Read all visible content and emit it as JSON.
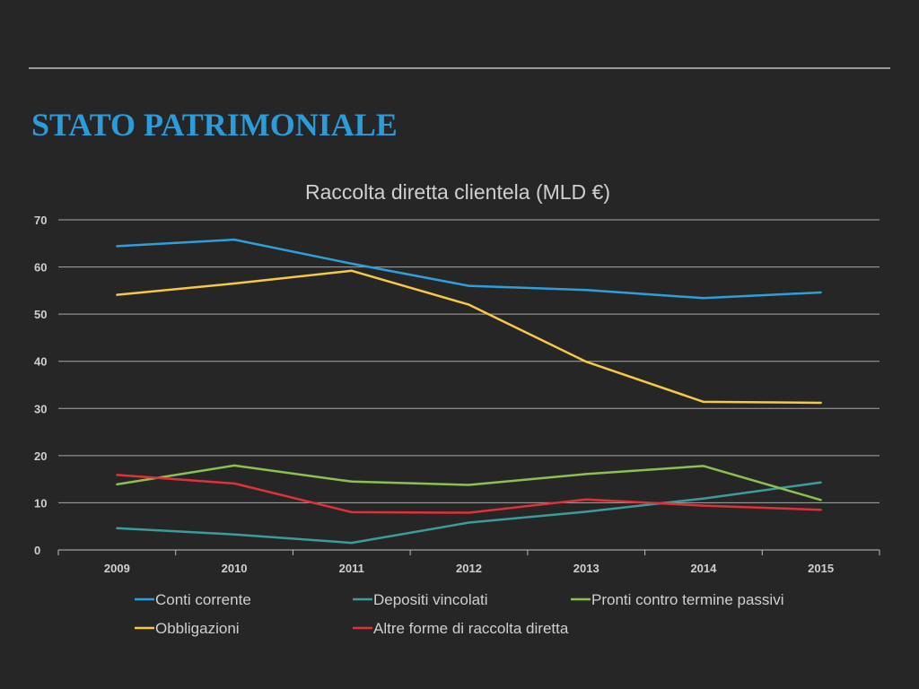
{
  "slide": {
    "title": "STATO PATRIMONIALE"
  },
  "chart_data": {
    "type": "line",
    "title": "Raccolta diretta clientela (MLD €)",
    "xlabel": "",
    "ylabel": "",
    "ylim": [
      0,
      70
    ],
    "yticks": [
      0,
      10,
      20,
      30,
      40,
      50,
      60,
      70
    ],
    "grid": true,
    "legend_position": "bottom",
    "categories": [
      "2009",
      "2010",
      "2011",
      "2012",
      "2013",
      "2014",
      "2015"
    ],
    "series": [
      {
        "name": "Conti corrente",
        "color": "#2f9fdc",
        "values": [
          64.4,
          65.8,
          60.7,
          56.0,
          55.1,
          53.4,
          54.6
        ]
      },
      {
        "name": "Depositi vincolati",
        "color": "#3b9c9c",
        "values": [
          4.6,
          3.3,
          1.5,
          5.8,
          8.1,
          10.9,
          14.3
        ]
      },
      {
        "name": "Pronti contro termine passivi",
        "color": "#8cc152",
        "values": [
          13.9,
          17.9,
          14.5,
          13.8,
          16.1,
          17.8,
          10.6
        ]
      },
      {
        "name": "Obbligazioni",
        "color": "#f7c846",
        "values": [
          54.1,
          56.5,
          59.2,
          52.0,
          39.9,
          31.4,
          31.2
        ]
      },
      {
        "name": "Altre forme di raccolta diretta",
        "color": "#e0313b",
        "values": [
          15.9,
          14.1,
          8.0,
          7.9,
          10.7,
          9.4,
          8.5
        ]
      }
    ]
  }
}
